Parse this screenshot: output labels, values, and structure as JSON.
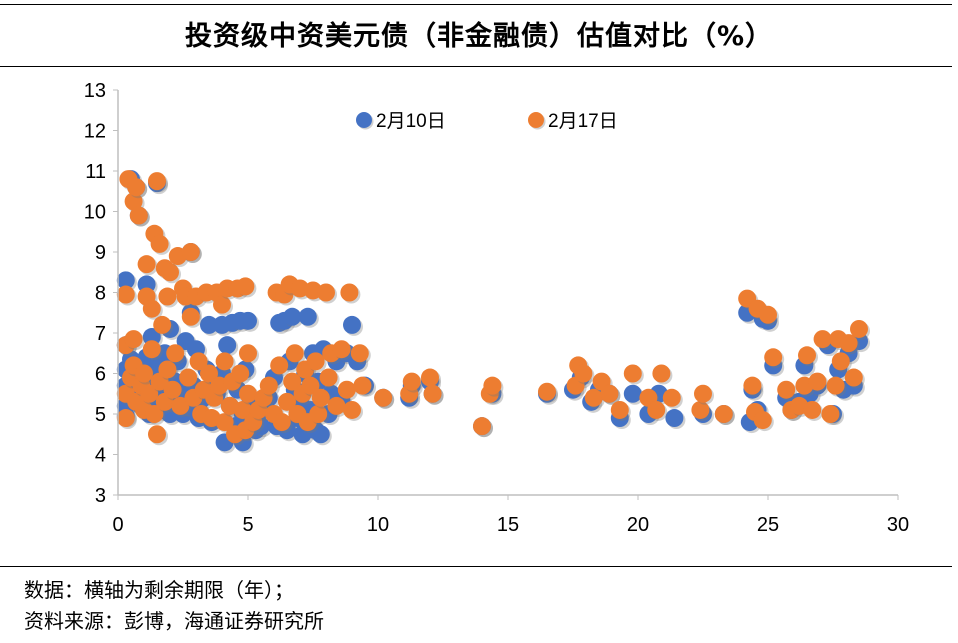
{
  "title": "投资级中资美元债（非金融债）估值对比（%）",
  "notes": {
    "line1": "数据：横轴为剩余期限（年）；",
    "line2": "资料来源：彭博，海通证券研究所"
  },
  "chart_data": {
    "type": "scatter",
    "title": "投资级中资美元债（非金融债）估值对比（%）",
    "xlabel": "",
    "ylabel": "",
    "xlim": [
      0,
      30
    ],
    "ylim": [
      3,
      13
    ],
    "xticks": [
      "0",
      "5",
      "10",
      "15",
      "20",
      "25",
      "30"
    ],
    "yticks": [
      "3",
      "4",
      "5",
      "6",
      "7",
      "8",
      "9",
      "10",
      "11",
      "12",
      "13"
    ],
    "grid": false,
    "legend": "top-center",
    "series": [
      {
        "name": "2月10日",
        "color": "#4472C4",
        "points": [
          [
            0.3,
            8.3
          ],
          [
            0.3,
            5.2
          ],
          [
            0.3,
            5.7
          ],
          [
            0.3,
            6.1
          ],
          [
            0.3,
            6.7
          ],
          [
            0.3,
            4.95
          ],
          [
            0.5,
            5.4
          ],
          [
            0.5,
            5.9
          ],
          [
            0.5,
            6.35
          ],
          [
            0.5,
            10.8
          ],
          [
            0.7,
            5.6
          ],
          [
            0.7,
            6.1
          ],
          [
            0.7,
            10.6
          ],
          [
            0.8,
            9.9
          ],
          [
            0.9,
            5.2
          ],
          [
            0.9,
            6.0
          ],
          [
            1.0,
            5.5
          ],
          [
            1.0,
            5.75
          ],
          [
            1.1,
            8.2
          ],
          [
            1.1,
            6.4
          ],
          [
            1.2,
            5.0
          ],
          [
            1.3,
            6.9
          ],
          [
            1.3,
            5.5
          ],
          [
            1.4,
            5.3
          ],
          [
            1.4,
            5.9
          ],
          [
            1.5,
            10.7
          ],
          [
            1.5,
            6.2
          ],
          [
            1.6,
            5.4
          ],
          [
            1.7,
            5.7
          ],
          [
            1.7,
            5.1
          ],
          [
            1.8,
            6.5
          ],
          [
            1.9,
            5.6
          ],
          [
            1.9,
            6.0
          ],
          [
            2.0,
            5.0
          ],
          [
            2.0,
            7.1
          ],
          [
            2.1,
            5.3
          ],
          [
            2.2,
            5.8
          ],
          [
            2.3,
            6.3
          ],
          [
            2.4,
            5.5
          ],
          [
            2.5,
            5.0
          ],
          [
            2.6,
            6.8
          ],
          [
            2.7,
            5.2
          ],
          [
            2.8,
            9.0
          ],
          [
            2.8,
            7.5
          ],
          [
            2.9,
            5.7
          ],
          [
            3.0,
            6.6
          ],
          [
            3.1,
            5.1
          ],
          [
            3.1,
            4.9
          ],
          [
            3.3,
            5.4
          ],
          [
            3.4,
            6.1
          ],
          [
            3.5,
            7.2
          ],
          [
            3.6,
            4.8
          ],
          [
            3.7,
            5.9
          ],
          [
            3.8,
            5.5
          ],
          [
            4.0,
            7.2
          ],
          [
            4.0,
            6.0
          ],
          [
            4.1,
            4.3
          ],
          [
            4.2,
            6.7
          ],
          [
            4.3,
            5.2
          ],
          [
            4.4,
            7.25
          ],
          [
            4.5,
            4.7
          ],
          [
            4.6,
            5.6
          ],
          [
            4.7,
            7.3
          ],
          [
            4.8,
            4.3
          ],
          [
            4.8,
            5.0
          ],
          [
            4.9,
            6.1
          ],
          [
            5.0,
            7.3
          ],
          [
            5.1,
            5.3
          ],
          [
            5.3,
            4.6
          ],
          [
            5.5,
            4.7
          ],
          [
            5.6,
            5.1
          ],
          [
            5.8,
            5.4
          ],
          [
            6.0,
            5.9
          ],
          [
            6.1,
            4.7
          ],
          [
            6.2,
            7.25
          ],
          [
            6.4,
            7.3
          ],
          [
            6.5,
            4.6
          ],
          [
            6.6,
            6.3
          ],
          [
            6.7,
            7.4
          ],
          [
            6.8,
            5.6
          ],
          [
            6.9,
            4.9
          ],
          [
            7.0,
            5.3
          ],
          [
            7.1,
            4.5
          ],
          [
            7.2,
            6.0
          ],
          [
            7.3,
            7.4
          ],
          [
            7.4,
            5.1
          ],
          [
            7.5,
            6.5
          ],
          [
            7.6,
            4.6
          ],
          [
            7.7,
            5.8
          ],
          [
            7.8,
            4.5
          ],
          [
            7.9,
            6.6
          ],
          [
            8.1,
            5.0
          ],
          [
            8.2,
            5.5
          ],
          [
            8.4,
            6.3
          ],
          [
            8.6,
            5.3
          ],
          [
            8.8,
            6.5
          ],
          [
            9.0,
            7.2
          ],
          [
            9.2,
            6.3
          ],
          [
            9.5,
            5.7
          ],
          [
            10.2,
            5.4
          ],
          [
            11.2,
            5.4
          ],
          [
            11.3,
            5.7
          ],
          [
            12.0,
            5.8
          ],
          [
            12.1,
            5.5
          ],
          [
            14.0,
            4.7
          ],
          [
            14.4,
            5.5
          ],
          [
            16.5,
            5.5
          ],
          [
            17.5,
            5.6
          ],
          [
            17.8,
            5.9
          ],
          [
            18.2,
            5.3
          ],
          [
            18.5,
            5.6
          ],
          [
            18.9,
            5.5
          ],
          [
            19.3,
            4.9
          ],
          [
            19.8,
            5.5
          ],
          [
            20.4,
            5.0
          ],
          [
            20.8,
            5.5
          ],
          [
            21.4,
            4.9
          ],
          [
            22.5,
            5.0
          ],
          [
            23.3,
            5.0
          ],
          [
            24.2,
            7.5
          ],
          [
            24.3,
            4.8
          ],
          [
            24.4,
            5.6
          ],
          [
            24.6,
            5.1
          ],
          [
            24.8,
            7.35
          ],
          [
            25.0,
            7.3
          ],
          [
            25.2,
            6.2
          ],
          [
            25.7,
            5.4
          ],
          [
            25.9,
            5.1
          ],
          [
            26.2,
            5.3
          ],
          [
            26.4,
            6.2
          ],
          [
            26.6,
            5.5
          ],
          [
            26.9,
            5.7
          ],
          [
            27.3,
            6.7
          ],
          [
            27.5,
            5.0
          ],
          [
            27.7,
            6.1
          ],
          [
            27.9,
            5.6
          ],
          [
            28.1,
            6.5
          ],
          [
            28.3,
            5.7
          ],
          [
            28.5,
            6.8
          ]
        ]
      },
      {
        "name": "2月17日",
        "color": "#ED7D31",
        "points": [
          [
            0.3,
            7.95
          ],
          [
            0.3,
            5.5
          ],
          [
            0.3,
            6.7
          ],
          [
            0.3,
            4.9
          ],
          [
            0.4,
            10.8
          ],
          [
            0.5,
            5.9
          ],
          [
            0.6,
            6.2
          ],
          [
            0.6,
            6.85
          ],
          [
            0.6,
            10.25
          ],
          [
            0.7,
            10.6
          ],
          [
            0.7,
            5.3
          ],
          [
            0.8,
            9.9
          ],
          [
            0.9,
            5.7
          ],
          [
            1.0,
            6.0
          ],
          [
            1.0,
            5.1
          ],
          [
            1.1,
            7.9
          ],
          [
            1.1,
            8.7
          ],
          [
            1.2,
            5.5
          ],
          [
            1.3,
            7.6
          ],
          [
            1.3,
            6.6
          ],
          [
            1.4,
            9.45
          ],
          [
            1.4,
            5.0
          ],
          [
            1.5,
            10.75
          ],
          [
            1.5,
            4.5
          ],
          [
            1.6,
            9.2
          ],
          [
            1.6,
            5.8
          ],
          [
            1.7,
            7.2
          ],
          [
            1.8,
            8.6
          ],
          [
            1.8,
            5.3
          ],
          [
            1.9,
            7.9
          ],
          [
            1.9,
            6.1
          ],
          [
            2.0,
            8.5
          ],
          [
            2.1,
            5.6
          ],
          [
            2.2,
            6.5
          ],
          [
            2.3,
            8.9
          ],
          [
            2.4,
            5.2
          ],
          [
            2.5,
            8.1
          ],
          [
            2.6,
            7.9
          ],
          [
            2.7,
            5.9
          ],
          [
            2.8,
            7.4
          ],
          [
            2.8,
            9.0
          ],
          [
            2.9,
            5.4
          ],
          [
            3.0,
            7.9
          ],
          [
            3.1,
            6.3
          ],
          [
            3.2,
            5.0
          ],
          [
            3.3,
            5.6
          ],
          [
            3.4,
            8.0
          ],
          [
            3.5,
            6.0
          ],
          [
            3.6,
            4.9
          ],
          [
            3.7,
            5.4
          ],
          [
            3.8,
            8.0
          ],
          [
            3.9,
            5.7
          ],
          [
            4.0,
            7.7
          ],
          [
            4.1,
            4.8
          ],
          [
            4.1,
            6.3
          ],
          [
            4.2,
            8.1
          ],
          [
            4.3,
            5.2
          ],
          [
            4.4,
            5.8
          ],
          [
            4.5,
            4.5
          ],
          [
            4.6,
            8.1
          ],
          [
            4.7,
            6.0
          ],
          [
            4.8,
            5.1
          ],
          [
            4.9,
            8.15
          ],
          [
            4.9,
            4.6
          ],
          [
            5.0,
            6.5
          ],
          [
            5.0,
            5.5
          ],
          [
            5.2,
            4.8
          ],
          [
            5.4,
            5.1
          ],
          [
            5.6,
            5.4
          ],
          [
            5.8,
            5.7
          ],
          [
            6.0,
            5.0
          ],
          [
            6.1,
            8.0
          ],
          [
            6.2,
            6.2
          ],
          [
            6.3,
            4.8
          ],
          [
            6.4,
            7.95
          ],
          [
            6.5,
            5.3
          ],
          [
            6.6,
            8.2
          ],
          [
            6.7,
            5.8
          ],
          [
            6.8,
            6.5
          ],
          [
            6.9,
            5.0
          ],
          [
            7.0,
            8.1
          ],
          [
            7.1,
            5.5
          ],
          [
            7.2,
            6.1
          ],
          [
            7.3,
            4.8
          ],
          [
            7.4,
            5.7
          ],
          [
            7.5,
            8.05
          ],
          [
            7.6,
            6.3
          ],
          [
            7.7,
            5.0
          ],
          [
            7.8,
            5.4
          ],
          [
            8.0,
            8.0
          ],
          [
            8.1,
            5.9
          ],
          [
            8.2,
            6.5
          ],
          [
            8.4,
            5.2
          ],
          [
            8.6,
            6.6
          ],
          [
            8.8,
            5.6
          ],
          [
            8.9,
            8.0
          ],
          [
            9.0,
            5.1
          ],
          [
            9.3,
            6.5
          ],
          [
            9.4,
            5.7
          ],
          [
            10.2,
            5.4
          ],
          [
            11.2,
            5.5
          ],
          [
            11.3,
            5.8
          ],
          [
            12.0,
            5.9
          ],
          [
            12.1,
            5.5
          ],
          [
            14.0,
            4.7
          ],
          [
            14.3,
            5.5
          ],
          [
            14.4,
            5.7
          ],
          [
            16.5,
            5.55
          ],
          [
            17.6,
            5.7
          ],
          [
            17.7,
            6.2
          ],
          [
            17.9,
            6.0
          ],
          [
            18.3,
            5.4
          ],
          [
            18.6,
            5.8
          ],
          [
            18.9,
            5.5
          ],
          [
            19.3,
            5.1
          ],
          [
            19.8,
            6.0
          ],
          [
            20.4,
            5.4
          ],
          [
            20.7,
            5.1
          ],
          [
            20.9,
            6.0
          ],
          [
            21.3,
            5.4
          ],
          [
            22.4,
            5.1
          ],
          [
            22.5,
            5.5
          ],
          [
            23.3,
            5.0
          ],
          [
            24.2,
            7.85
          ],
          [
            24.4,
            5.7
          ],
          [
            24.5,
            5.05
          ],
          [
            24.6,
            7.6
          ],
          [
            24.8,
            4.85
          ],
          [
            25.0,
            7.45
          ],
          [
            25.2,
            6.4
          ],
          [
            25.7,
            5.6
          ],
          [
            25.9,
            5.1
          ],
          [
            26.2,
            5.2
          ],
          [
            26.4,
            5.7
          ],
          [
            26.5,
            6.45
          ],
          [
            26.7,
            5.1
          ],
          [
            26.9,
            5.8
          ],
          [
            27.1,
            6.85
          ],
          [
            27.4,
            5.0
          ],
          [
            27.6,
            5.7
          ],
          [
            27.7,
            6.85
          ],
          [
            27.8,
            6.3
          ],
          [
            28.1,
            6.75
          ],
          [
            28.3,
            5.9
          ],
          [
            28.5,
            7.1
          ]
        ]
      }
    ]
  }
}
